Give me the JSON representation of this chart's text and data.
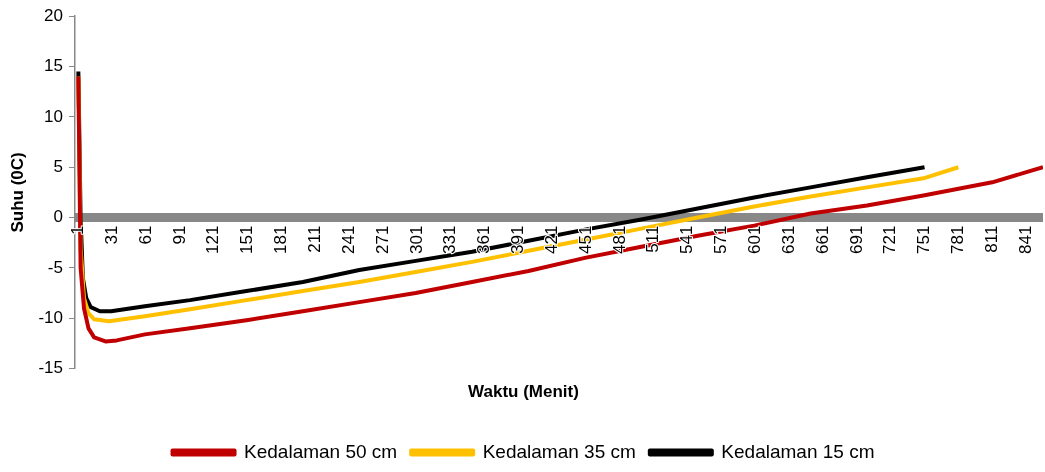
{
  "chart_data": {
    "type": "line",
    "xlabel": "Waktu (Menit)",
    "ylabel": "Suhu (0C)",
    "legend": "bottom",
    "grid": false,
    "xlim": [
      -2,
      856
    ],
    "ylim": [
      -15,
      20
    ],
    "yticks": [
      -15,
      -10,
      -5,
      0,
      5,
      10,
      15,
      20
    ],
    "xticks": [
      1,
      31,
      61,
      91,
      121,
      151,
      181,
      211,
      241,
      271,
      301,
      331,
      361,
      391,
      421,
      451,
      481,
      511,
      541,
      571,
      601,
      631,
      661,
      691,
      721,
      751,
      781,
      811,
      841
    ],
    "series": [
      {
        "name": "Kedalaman 50 cm",
        "color": "#c00000",
        "x": [
          1,
          3,
          6,
          10,
          15,
          25,
          35,
          60,
          100,
          150,
          200,
          250,
          300,
          350,
          400,
          450,
          500,
          550,
          600,
          650,
          700,
          750,
          811,
          856
        ],
        "values": [
          14,
          -5,
          -9,
          -11,
          -11.9,
          -12.3,
          -12.2,
          -11.6,
          -11,
          -10.2,
          -9.3,
          -8.4,
          -7.5,
          -6.4,
          -5.3,
          -4,
          -2.9,
          -1.8,
          -0.8,
          0.4,
          1.2,
          2.2,
          3.5,
          5
        ]
      },
      {
        "name": "Kedalaman 35 cm",
        "color": "#ffc000",
        "x": [
          1,
          3,
          6,
          10,
          15,
          28,
          60,
          100,
          150,
          200,
          250,
          300,
          350,
          400,
          450,
          500,
          550,
          600,
          650,
          700,
          750,
          781
        ],
        "values": [
          14,
          -3,
          -8,
          -9.5,
          -10.1,
          -10.3,
          -9.8,
          -9.1,
          -8.2,
          -7.3,
          -6.4,
          -5.4,
          -4.4,
          -3.3,
          -2.2,
          -1.1,
          0,
          1.1,
          2.1,
          3,
          3.9,
          5
        ]
      },
      {
        "name": "Kedalaman 15 cm",
        "color": "#000000",
        "x": [
          1,
          3,
          5,
          8,
          12,
          20,
          30,
          60,
          100,
          150,
          200,
          250,
          300,
          350,
          400,
          450,
          500,
          550,
          600,
          650,
          700,
          751
        ],
        "values": [
          14.5,
          0,
          -6,
          -8,
          -8.9,
          -9.3,
          -9.3,
          -8.8,
          -8.2,
          -7.3,
          -6.4,
          -5.2,
          -4.3,
          -3.4,
          -2.3,
          -1.2,
          -0.2,
          0.9,
          2,
          3,
          4,
          5
        ]
      }
    ]
  }
}
